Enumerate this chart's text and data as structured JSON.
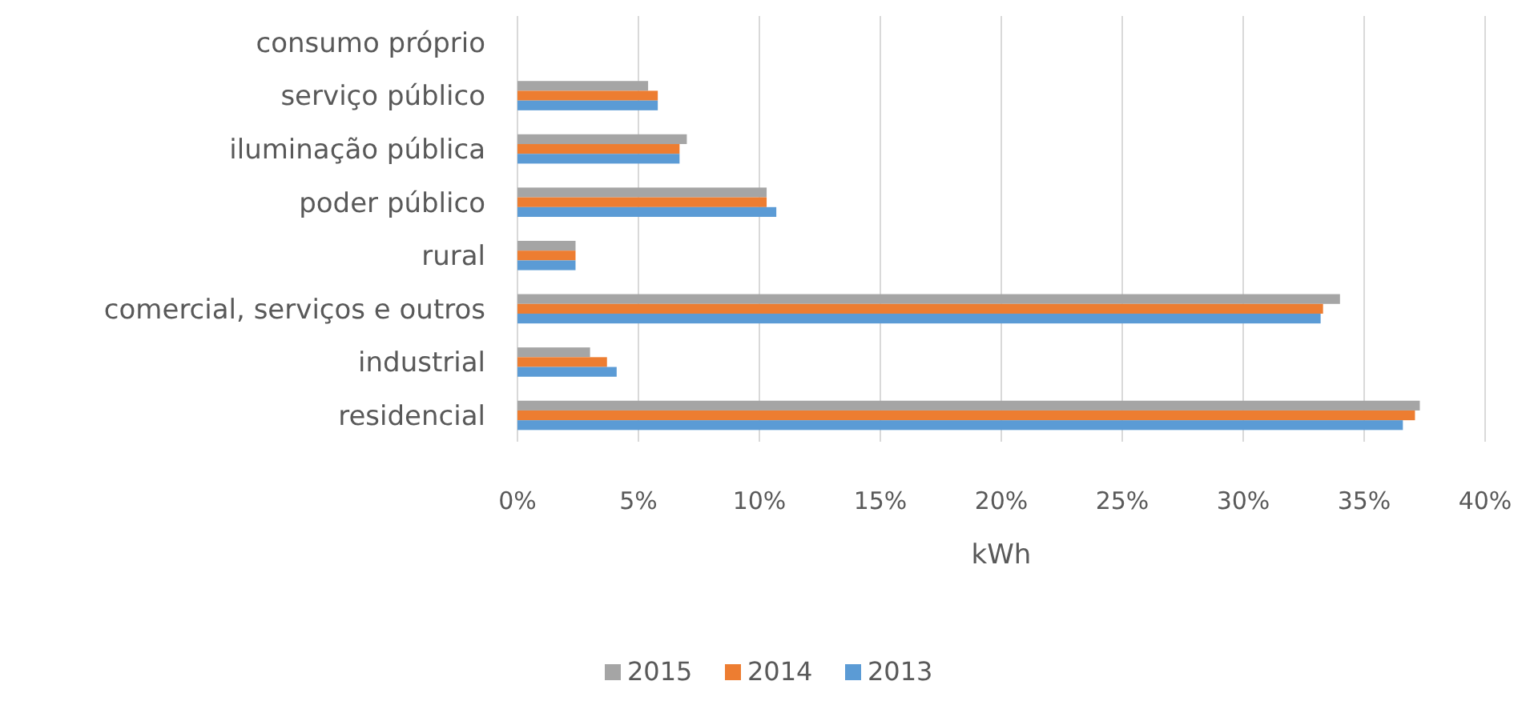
{
  "chart_data": {
    "type": "bar",
    "orientation": "horizontal",
    "xlabel": "kWh",
    "categories": [
      "consumo próprio",
      "serviço público",
      "iluminação pública",
      "poder público",
      "rural",
      "comercial, serviços e outros",
      "industrial",
      "residencial"
    ],
    "series": [
      {
        "name": "2015",
        "color": "#a5a5a5",
        "values": [
          0,
          5.4,
          7.0,
          10.3,
          2.4,
          34.0,
          3.0,
          37.3
        ]
      },
      {
        "name": "2014",
        "color": "#ed7d31",
        "values": [
          0,
          5.8,
          6.7,
          10.3,
          2.4,
          33.3,
          3.7,
          37.1
        ]
      },
      {
        "name": "2013",
        "color": "#5b9bd5",
        "values": [
          0,
          5.8,
          6.7,
          10.7,
          2.4,
          33.2,
          4.1,
          36.6
        ]
      }
    ],
    "xlim": [
      0,
      40
    ],
    "xticks": [
      {
        "value": 0,
        "label": "0%"
      },
      {
        "value": 5,
        "label": "5%"
      },
      {
        "value": 10,
        "label": "10%"
      },
      {
        "value": 15,
        "label": "15%"
      },
      {
        "value": 20,
        "label": "20%"
      },
      {
        "value": 25,
        "label": "25%"
      },
      {
        "value": 30,
        "label": "30%"
      },
      {
        "value": 35,
        "label": "35%"
      },
      {
        "value": 40,
        "label": "40%"
      }
    ],
    "grid": "x",
    "legend": "bottom"
  }
}
